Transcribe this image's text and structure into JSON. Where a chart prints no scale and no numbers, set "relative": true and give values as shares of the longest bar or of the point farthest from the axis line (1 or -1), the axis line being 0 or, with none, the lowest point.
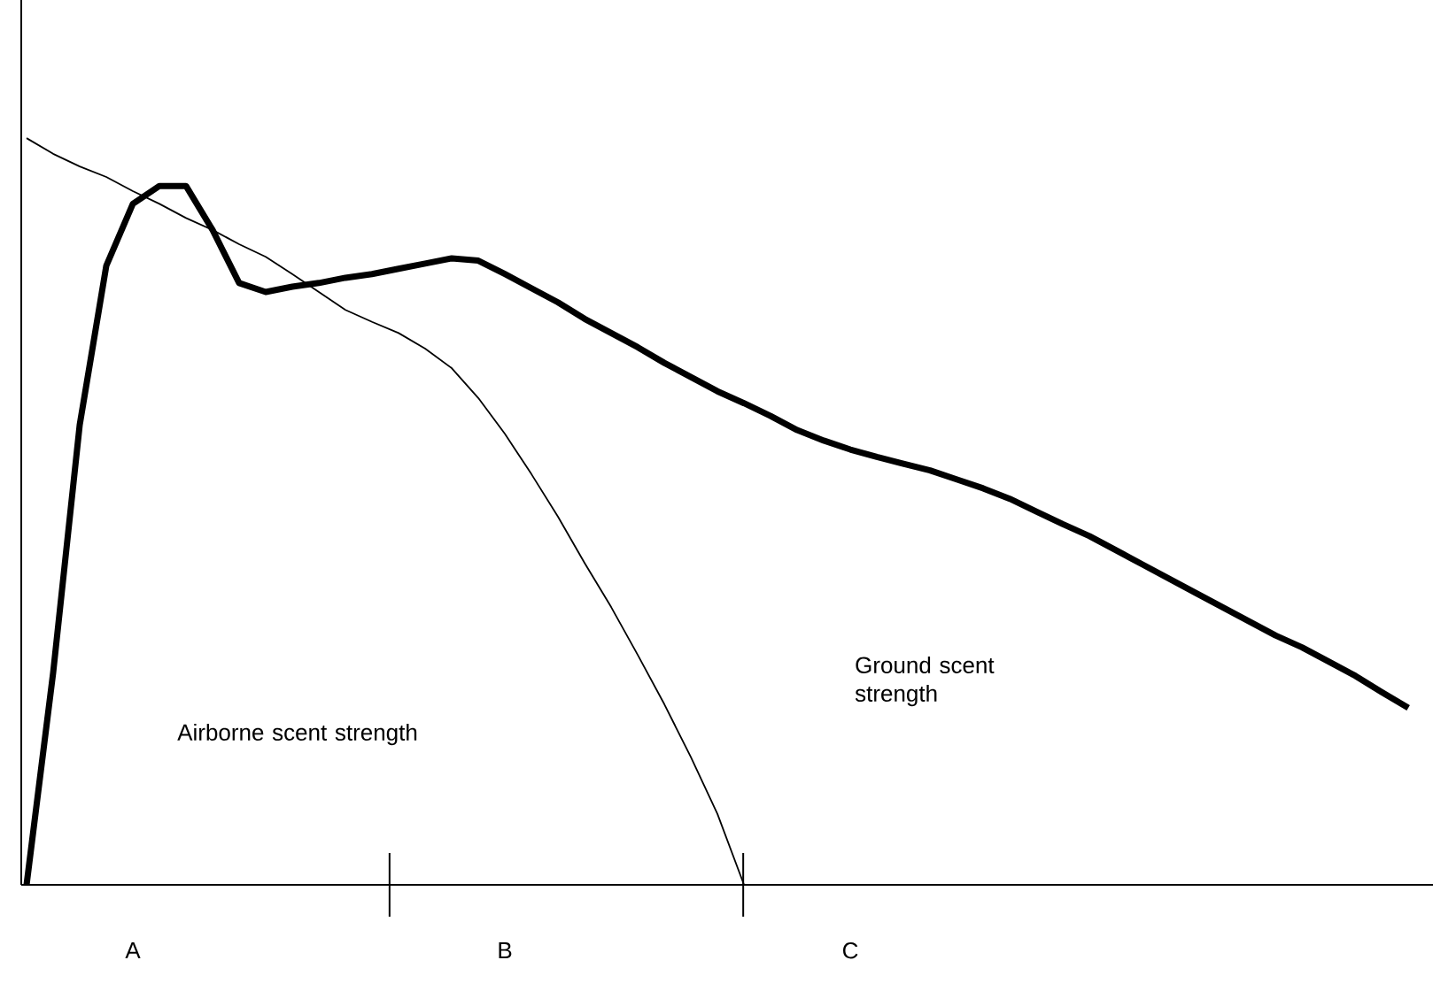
{
  "chart_data": {
    "type": "line",
    "relative": true,
    "categories": [
      null,
      null,
      null,
      null,
      "A",
      null,
      null,
      null,
      null,
      null,
      null,
      null,
      null,
      null,
      null,
      null,
      null,
      null,
      "B",
      null,
      null,
      null,
      null,
      null,
      null,
      null,
      null,
      null,
      null,
      null,
      null,
      "C",
      null,
      null,
      null,
      null,
      null,
      null,
      null,
      null,
      null,
      null,
      null,
      null,
      null,
      null,
      null,
      null,
      null,
      null,
      null,
      null,
      null
    ],
    "series": [
      {
        "color": "#000000",
        "values": [
          1,
          0.979,
          0.962,
          0.948,
          0.929,
          0.912,
          0.893,
          0.877,
          0.858,
          0.841,
          0.818,
          0.794,
          0.77,
          0.754,
          0.739,
          0.718,
          0.692,
          0.652,
          0.604,
          0.55,
          0.493,
          0.431,
          0.372,
          0.308,
          0.242,
          0.171,
          0.095,
          0,
          null,
          null,
          null,
          null,
          null,
          null,
          null,
          null,
          null,
          null,
          null,
          null,
          null,
          null,
          null,
          null,
          null,
          null,
          null,
          null,
          null,
          null,
          null,
          null,
          null
        ]
      },
      {
        "color": "#000000",
        "values": [
          0,
          0.284,
          0.616,
          0.829,
          0.912,
          0.936,
          0.936,
          0.877,
          0.806,
          0.794,
          0.801,
          0.806,
          0.813,
          0.818,
          0.825,
          0.832,
          0.839,
          0.836,
          0.818,
          0.799,
          0.78,
          0.758,
          0.739,
          0.72,
          0.699,
          0.68,
          0.661,
          0.645,
          0.628,
          0.609,
          0.595,
          0.583,
          0.573,
          0.564,
          0.555,
          0.543,
          0.531,
          0.517,
          0.5,
          0.483,
          0.467,
          0.448,
          0.429,
          0.41,
          0.391,
          0.372,
          0.353,
          0.334,
          0.318,
          0.299,
          0.28,
          0.258,
          0.237
        ]
      }
    ],
    "annotations": [
      "Airborne scent strength",
      "Ground scent strength"
    ]
  }
}
